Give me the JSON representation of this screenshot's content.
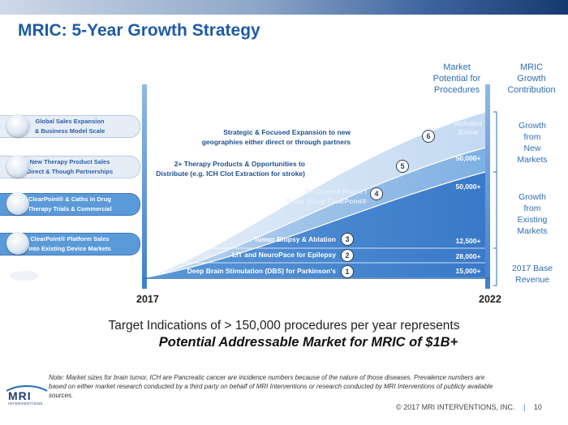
{
  "title": "MRIC: 5-Year Growth Strategy",
  "headers": {
    "market": [
      "Market",
      "Potential for",
      "Procedures"
    ],
    "growth": [
      "MRIC",
      "Growth",
      "Contribution"
    ]
  },
  "left_pills": [
    {
      "line1": "Global Sales Expansion",
      "line2": "& Business Model Scale",
      "icon": "globe-icon"
    },
    {
      "line1": "New Therapy Product Sales",
      "line2": "Direct & Though Partnerships",
      "icon": "device-icon"
    },
    {
      "line1": "ClearPoint® & Caths in Drug",
      "line2": "Therapy Trials & Commercial",
      "icon": "catheter-icon"
    },
    {
      "line1": "ClearPoint® Platform Sales",
      "line2": "Into Existing Device Markets",
      "icon": "platform-icon"
    }
  ],
  "chart_text": {
    "strategic": [
      "Strategic & Focused Expansion to new",
      "geographies either direct or through partners"
    ],
    "therapy": [
      "2+ Therapy Products & Opportunities to",
      "Distribute (e.g. ICH Clot Extraction for stroke)"
    ],
    "trials": [
      "5+ Current Phase I",
      "Trials Using ClearPoint®"
    ],
    "tumor": "Tumor Biopsy & Ablation",
    "lit": "LIT and NeuroPace for Epilepsy",
    "dbs": "Deep Brain Stimulation (DBS) for Parkinson’s"
  },
  "numbers": [
    "1",
    "2",
    "3",
    "4",
    "5",
    "6"
  ],
  "values": {
    "included": [
      "Included",
      "Below"
    ],
    "v50a": "50,000+",
    "v50b": "50,000+",
    "v12": "12,500+",
    "v28": "28,000+",
    "v15": "15,000+"
  },
  "right_labels": {
    "new_markets": [
      "Growth",
      "from",
      "New",
      "Markets"
    ],
    "existing": [
      "Growth",
      "from",
      "Existing",
      "Markets"
    ],
    "base": [
      "2017 Base",
      "Revenue"
    ]
  },
  "years": {
    "start": "2017",
    "end": "2022"
  },
  "bottom": {
    "line1": "Target Indications of > 150,000 procedures per year represents",
    "line2": "Potential Addressable Market for MRIC of $1B+"
  },
  "note": "Note: Market sizes for brain tumor, ICH are Pancreatic cancer are incidence numbers because of the nature of those diseases. Prevalence numbers are based on either market research conducted by a third party on behalf of MRI Interventions or research conducted by MRI Interventions of publicly available sources.",
  "footer": {
    "copyright": "© 2017 MRI INTERVENTIONS, INC.",
    "separator": "|",
    "page": "10"
  },
  "logo": {
    "text": "MRI",
    "sub": "INTERVENTIONS"
  },
  "colors": {
    "accent": "#2e6db4",
    "band_dark": "#3d7ccb",
    "band_mid": "#74a5dc",
    "band_light": "#b9d2ef"
  }
}
